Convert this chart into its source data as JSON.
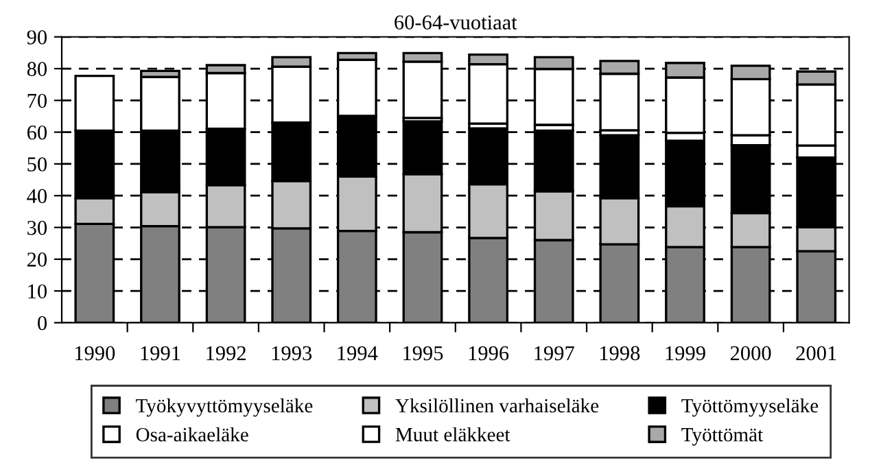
{
  "chart_data": {
    "type": "bar",
    "stacked": true,
    "title": "60-64-vuotiaat",
    "categories": [
      "1990",
      "1991",
      "1992",
      "1993",
      "1994",
      "1995",
      "1996",
      "1997",
      "1998",
      "1999",
      "2000",
      "2001"
    ],
    "series": [
      {
        "name": "Työkyvyttömyyseläke",
        "color": "#808080",
        "values": [
          31.1,
          30.4,
          30.1,
          29.7,
          28.9,
          28.5,
          26.7,
          26.0,
          24.7,
          23.8,
          23.8,
          22.5
        ]
      },
      {
        "name": "Yksilöllinen varhaiseläke",
        "color": "#c0c0c0",
        "values": [
          8.1,
          10.7,
          13.2,
          14.9,
          17.1,
          18.3,
          16.9,
          15.4,
          14.5,
          12.9,
          10.7,
          7.6
        ]
      },
      {
        "name": "Työttömyyseläke",
        "color": "#000000",
        "values": [
          21.3,
          19.4,
          17.8,
          18.4,
          19.1,
          16.6,
          17.6,
          19.1,
          19.8,
          20.6,
          21.4,
          21.9
        ]
      },
      {
        "name": "Osa-aikaeläke",
        "color": "#ffffff",
        "values": [
          0,
          0,
          0,
          0,
          0,
          1.1,
          1.5,
          1.8,
          1.6,
          2.5,
          3.1,
          3.8
        ]
      },
      {
        "name": "Muut eläkkeet",
        "color": "#ffffff",
        "values": [
          17.2,
          16.9,
          17.5,
          17.6,
          17.7,
          17.7,
          18.7,
          17.6,
          17.8,
          17.4,
          17.7,
          19.2
        ]
      },
      {
        "name": "Työttömät",
        "color": "#a8a8a8",
        "values": [
          0,
          1.9,
          2.5,
          3.0,
          2.1,
          2.7,
          3.0,
          3.7,
          4.0,
          4.6,
          4.2,
          4.1
        ]
      }
    ],
    "ylim": [
      0,
      90
    ],
    "yticks": [
      0,
      10,
      20,
      30,
      40,
      50,
      60,
      70,
      80,
      90
    ],
    "grid": "y",
    "legend": "bottom"
  }
}
